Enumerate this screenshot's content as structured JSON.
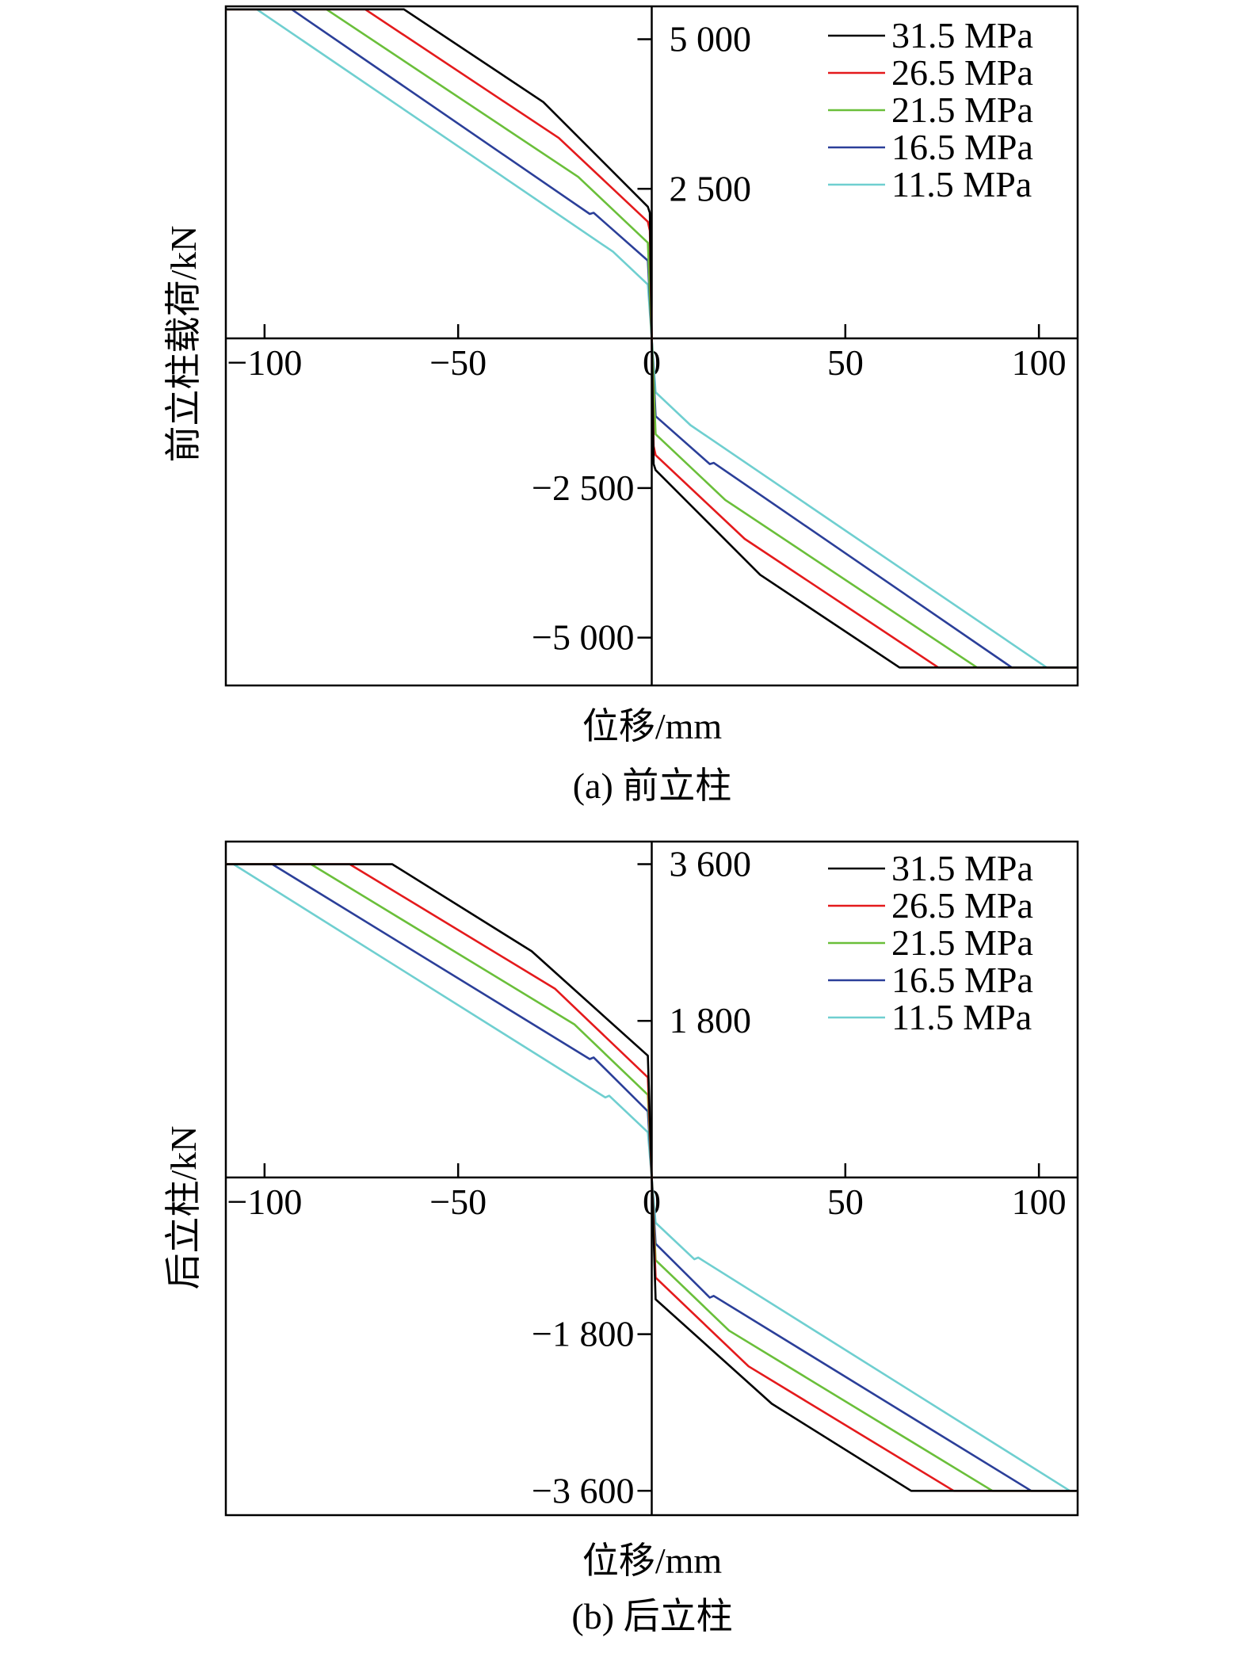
{
  "chart_data": [
    {
      "type": "line",
      "caption": "(a) 前立柱",
      "xlabel": "位移/mm",
      "ylabel": "前立柱载荷/kN",
      "xlim": [
        -110,
        110
      ],
      "ylim": [
        -5800,
        5550
      ],
      "xticks": [
        {
          "value": -100,
          "label": "−100"
        },
        {
          "value": -50,
          "label": "−50"
        },
        {
          "value": 0,
          "label": "0"
        },
        {
          "value": 50,
          "label": "50"
        },
        {
          "value": 100,
          "label": "100"
        }
      ],
      "yticks": [
        {
          "value": 5000,
          "label": "5 000"
        },
        {
          "value": 2500,
          "label": "2 500"
        },
        {
          "value": -2500,
          "label": "−2 500"
        },
        {
          "value": -5000,
          "label": "−5 000"
        }
      ],
      "legend_position": "top-right",
      "grid": false,
      "series": [
        {
          "name": "31.5 MPa",
          "color": "#000000",
          "x": [
            -110,
            -64,
            -28,
            -1,
            -0.5,
            0,
            0.5,
            1,
            28,
            64,
            110
          ],
          "y": [
            5500,
            5500,
            3950,
            2200,
            2100,
            0,
            -2100,
            -2200,
            -3950,
            -5500,
            -5500
          ]
        },
        {
          "name": "26.5 MPa",
          "color": "#e41a1c",
          "x": [
            -110,
            -74,
            -24,
            -1,
            -0.5,
            0,
            0.5,
            1,
            24,
            74,
            110
          ],
          "y": [
            5500,
            5500,
            3350,
            1950,
            1800,
            0,
            -1800,
            -1950,
            -3350,
            -5500,
            -5500
          ]
        },
        {
          "name": "21.5 MPa",
          "color": "#6abf3a",
          "x": [
            -110,
            -84,
            -19,
            -1,
            0,
            1,
            19,
            84,
            110
          ],
          "y": [
            5500,
            5500,
            2700,
            1600,
            0,
            -1600,
            -2700,
            -5500,
            -5500
          ]
        },
        {
          "name": "16.5 MPa",
          "color": "#2b3f99",
          "x": [
            -110,
            -93,
            -16,
            -15,
            -1,
            0,
            1,
            15,
            16,
            93,
            110
          ],
          "y": [
            5500,
            5500,
            2080,
            2100,
            1300,
            0,
            -1300,
            -2100,
            -2080,
            -5500,
            -5500
          ]
        },
        {
          "name": "11.5 MPa",
          "color": "#6fcfd0",
          "x": [
            -102,
            -10,
            -1,
            0,
            1,
            10,
            102,
            110
          ],
          "y": [
            5500,
            1450,
            900,
            0,
            -900,
            -1450,
            -5500,
            -5500
          ]
        }
      ]
    },
    {
      "type": "line",
      "caption": "(b) 后立柱",
      "xlabel": "位移/mm",
      "ylabel": "后立柱/kN",
      "xlim": [
        -110,
        110
      ],
      "ylim": [
        -3880,
        3860
      ],
      "xticks": [
        {
          "value": -100,
          "label": "−100"
        },
        {
          "value": -50,
          "label": "−50"
        },
        {
          "value": 0,
          "label": "0"
        },
        {
          "value": 50,
          "label": "50"
        },
        {
          "value": 100,
          "label": "100"
        }
      ],
      "yticks": [
        {
          "value": 3600,
          "label": "3 600"
        },
        {
          "value": 1800,
          "label": "1 800"
        },
        {
          "value": -1800,
          "label": "−1 800"
        },
        {
          "value": -3600,
          "label": "−3 600"
        }
      ],
      "legend_position": "top-right",
      "grid": false,
      "series": [
        {
          "name": "31.5 MPa",
          "color": "#000000",
          "x": [
            -110,
            -67,
            -31,
            -1,
            0,
            1,
            31,
            67,
            110
          ],
          "y": [
            3600,
            3600,
            2600,
            1400,
            0,
            -1400,
            -2600,
            -3600,
            -3600
          ]
        },
        {
          "name": "26.5 MPa",
          "color": "#e41a1c",
          "x": [
            -110,
            -78,
            -25,
            -1,
            0,
            1,
            25,
            78,
            110
          ],
          "y": [
            3600,
            3600,
            2170,
            1150,
            0,
            -1150,
            -2170,
            -3600,
            -3600
          ]
        },
        {
          "name": "21.5 MPa",
          "color": "#6abf3a",
          "x": [
            -110,
            -88,
            -20,
            -1,
            0,
            1,
            20,
            88,
            110
          ],
          "y": [
            3600,
            3600,
            1760,
            950,
            0,
            -950,
            -1760,
            -3600,
            -3600
          ]
        },
        {
          "name": "16.5 MPa",
          "color": "#2b3f99",
          "x": [
            -110,
            -98,
            -16,
            -15,
            -1,
            0,
            1,
            15,
            16,
            98,
            110
          ],
          "y": [
            3600,
            3600,
            1360,
            1380,
            760,
            0,
            -760,
            -1380,
            -1360,
            -3600,
            -3600
          ]
        },
        {
          "name": "11.5 MPa",
          "color": "#6fcfd0",
          "x": [
            -108,
            -12,
            -11,
            -1,
            0,
            1,
            11,
            12,
            108,
            110
          ],
          "y": [
            3600,
            920,
            940,
            520,
            0,
            -520,
            -940,
            -920,
            -3600,
            -3600
          ]
        }
      ]
    }
  ]
}
